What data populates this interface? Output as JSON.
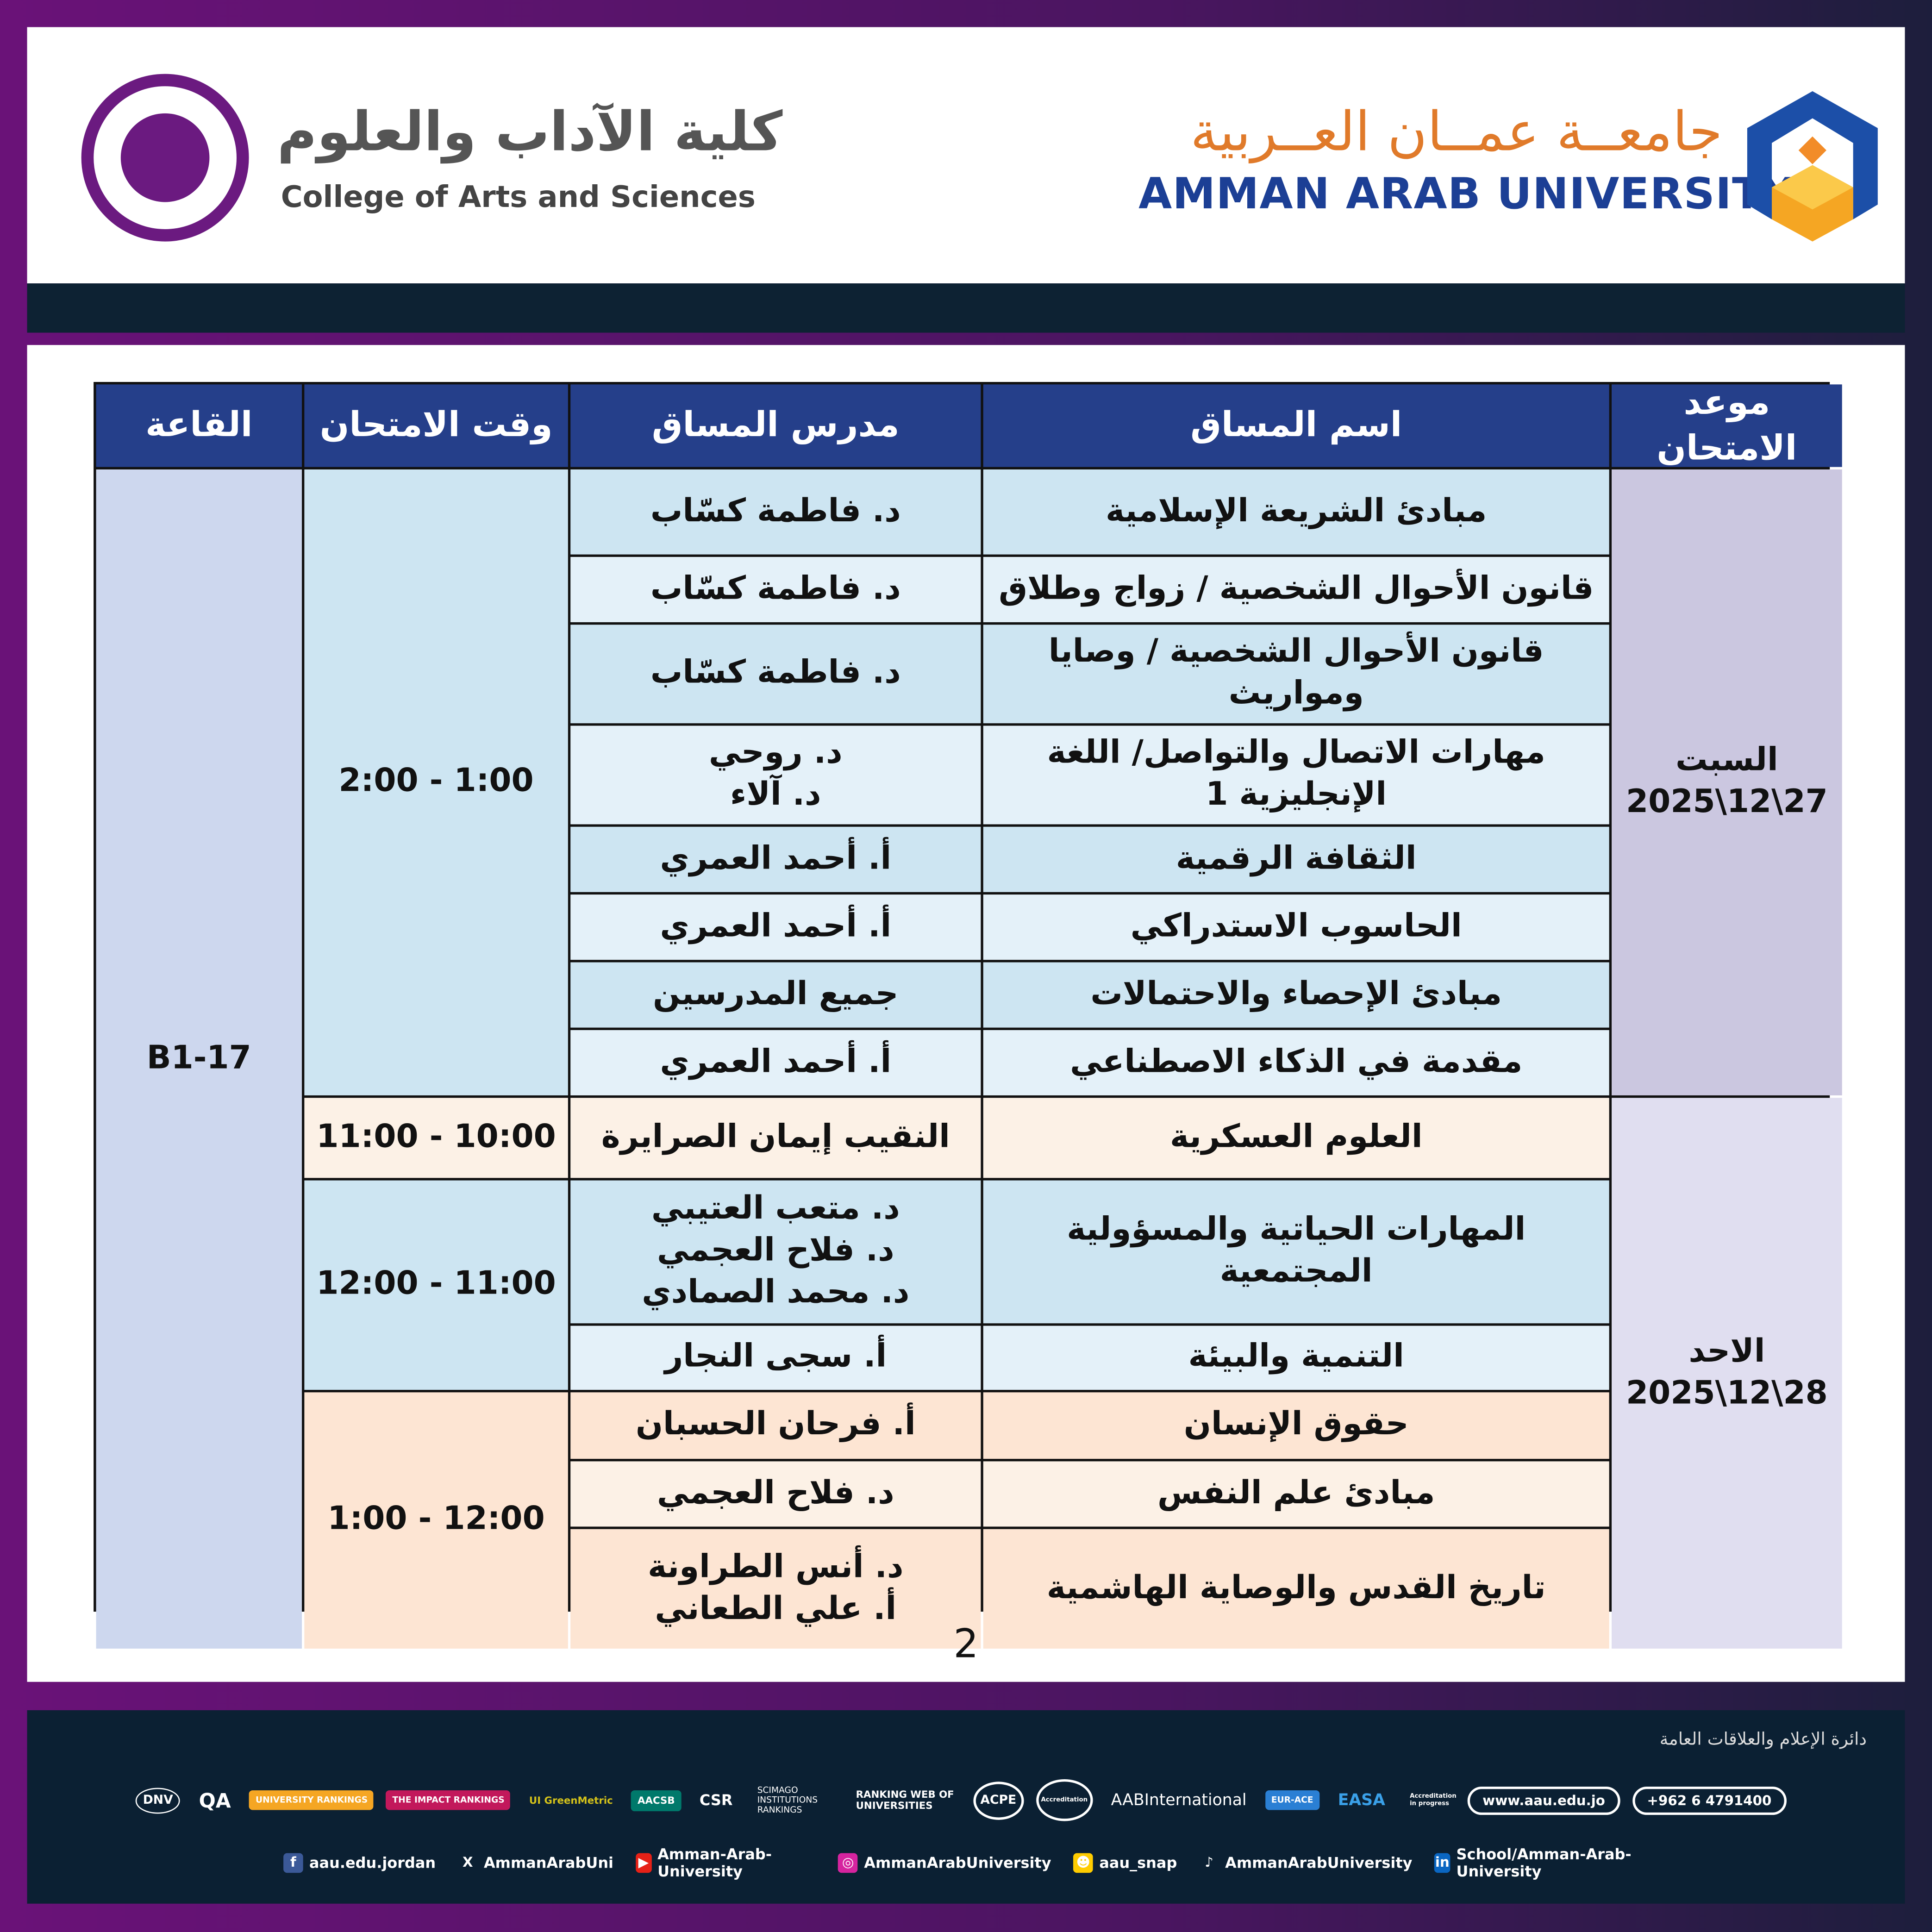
{
  "header": {
    "college_ar": "كلية الآداب والعلوم",
    "college_en": "College of Arts and Sciences",
    "university_ar": "جامعــة عمــان العــربية",
    "university_en": "AMMAN ARAB UNIVERSITY"
  },
  "colors": {
    "purple": "#6b1a80",
    "navy": "#0d2233",
    "table_header": "#253f8a",
    "blue_light": "#cde5f2",
    "blue_lighter": "#e4f1f9",
    "peach": "#fde5d3",
    "peach_light": "#fcf1e6",
    "saturday": "#cbc7e0",
    "sunday": "#e0def0",
    "hall": "#cdd7ee"
  },
  "table": {
    "headers": {
      "hall": "القاعة",
      "time": "وقت الامتحان",
      "instructor": "مدرس المساق",
      "course": "اسم المساق",
      "date": "موعد الامتحان"
    },
    "hall": "B1-17",
    "days": [
      {
        "day": "السبت",
        "date": "2025\\12\\27"
      },
      {
        "day": "الاحد",
        "date": "2025\\12\\28"
      }
    ],
    "times": [
      "2:00 - 1:00",
      "11:00 - 10:00",
      "12:00 - 11:00",
      "1:00 - 12:00"
    ],
    "rows": [
      {
        "course": "مبادئ الشريعة الإسلامية",
        "instructor": "د. فاطمة كسّاب"
      },
      {
        "course": "قانون الأحوال الشخصية / زواج وطلاق",
        "instructor": "د. فاطمة كسّاب"
      },
      {
        "course": "قانون الأحوال الشخصية / وصايا ومواريث",
        "instructor": "د. فاطمة كسّاب"
      },
      {
        "course": "مهارات الاتصال والتواصل/ اللغة الإنجليزية 1",
        "instructor": "د. روحي\nد. آلاء"
      },
      {
        "course": "الثقافة الرقمية",
        "instructor": "أ. أحمد العمري"
      },
      {
        "course": "الحاسوب الاستدراكي",
        "instructor": "أ. أحمد العمري"
      },
      {
        "course": "مبادئ الإحصاء والاحتمالات",
        "instructor": "جميع المدرسين"
      },
      {
        "course": "مقدمة في الذكاء الاصطناعي",
        "instructor": "أ. أحمد العمري"
      },
      {
        "course": "العلوم العسكرية",
        "instructor": "النقيب إيمان الصرايرة"
      },
      {
        "course": "المهارات الحياتية والمسؤولية المجتمعية",
        "instructor": "د. متعب العتيبي\nد. فلاح العجمي\nد. محمد الصمادي"
      },
      {
        "course": "التنمية والبيئة",
        "instructor": "أ. سجى النجار"
      },
      {
        "course": "حقوق الإنسان",
        "instructor": "أ. فرحان الحسبان"
      },
      {
        "course": "مبادئ علم النفس",
        "instructor": "د. فلاح العجمي"
      },
      {
        "course": "تاريخ القدس والوصاية الهاشمية",
        "instructor": "د. أنس الطراونة\nأ. علي الطعاني"
      }
    ]
  },
  "page_number": "2",
  "footer": {
    "department": "دائرة الإعلام والعلاقات العامة",
    "logos": [
      "DNV",
      "QA",
      "UNIVERSITY RANKINGS",
      "THE IMPACT RANKINGS",
      "UI GreenMetric",
      "AACSB",
      "CSR",
      "SCIMAGO INSTITUTIONS RANKINGS",
      "RANKING WEB OF UNIVERSITIES",
      "ACPE",
      "Accreditation",
      "AABInternational",
      "EUR-ACE",
      "EASA",
      "Accreditation in progress"
    ],
    "website": "www.aau.edu.jo",
    "phone": "+962 6 4791400",
    "socials": [
      {
        "icon": "facebook-icon",
        "label": "aau.edu.jordan"
      },
      {
        "icon": "x-icon",
        "label": "AmmanArabUni"
      },
      {
        "icon": "youtube-icon",
        "label": "Amman-Arab-University"
      },
      {
        "icon": "instagram-icon",
        "label": "AmmanArabUniversity"
      },
      {
        "icon": "snapchat-icon",
        "label": "aau_snap"
      },
      {
        "icon": "tiktok-icon",
        "label": "AmmanArabUniversity"
      },
      {
        "icon": "linkedin-icon",
        "label": "School/Amman-Arab-University"
      }
    ]
  }
}
